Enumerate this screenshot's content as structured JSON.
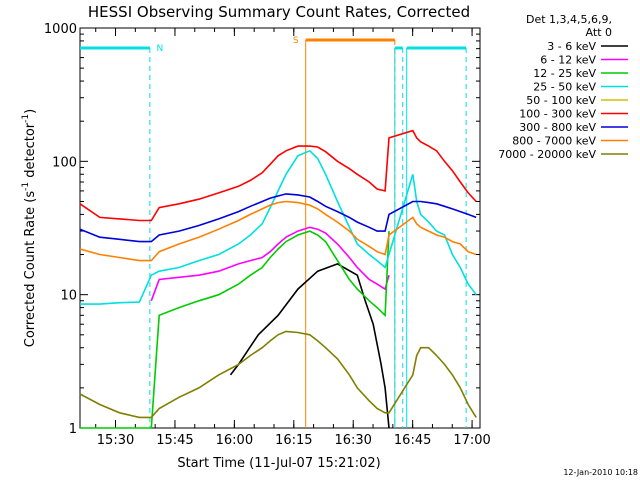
{
  "chart_data": {
    "type": "line",
    "title": "HESSI Observing Summary Count Rates, Corrected",
    "xlabel": "Start Time (11-Jul-07 15:21:02)",
    "ylabel_main": "Corrected Count Rate (s",
    "ylabel_sup1": "-1",
    "ylabel_mid": " detector",
    "ylabel_sup2": "-1",
    "ylabel_end": ")",
    "yscale": "log",
    "ylim": [
      1,
      1000
    ],
    "xlim": [
      "15:21:02",
      "17:02:00"
    ],
    "x_ticks": [
      "15:30",
      "15:45",
      "16:00",
      "16:15",
      "16:30",
      "16:45",
      "17:00"
    ],
    "y_ticks": [
      "1",
      "10",
      "100",
      "1000"
    ],
    "legend_header": [
      "Det 1,3,4,5,6,9,",
      "Att 0"
    ],
    "timestamp": "12-Jan-2010 10:18",
    "flags": [
      {
        "label": "N",
        "color": "#00e0e0"
      },
      {
        "label": "S",
        "color": "#ff8000"
      }
    ],
    "flag_intervals": [
      {
        "flag": "N",
        "start": "15:21:02",
        "end": "15:38:40",
        "color": "#00e0e0"
      },
      {
        "flag": "S",
        "start": "16:18:00",
        "end": "16:40:30",
        "color": "#ff8000"
      },
      {
        "flag": "N",
        "start": "16:40:30",
        "end": "16:42:30",
        "color": "#00e0e0"
      },
      {
        "flag": "N",
        "start": "16:43:30",
        "end": "16:58:30",
        "color": "#00e0e0"
      }
    ],
    "series": [
      {
        "name": "3 - 6 keV",
        "color": "#000000",
        "t": [
          38,
          40,
          45,
          50,
          55,
          60,
          65,
          70,
          72,
          74,
          76,
          77,
          78
        ],
        "v": [
          2.5,
          3,
          5,
          7,
          11,
          15,
          17,
          14,
          9,
          6,
          3,
          2,
          1
        ]
      },
      {
        "name": "6 - 12 keV",
        "color": "#ff00ff",
        "t": [
          0,
          5,
          10,
          15,
          18,
          20,
          25,
          30,
          35,
          40,
          43,
          46,
          48,
          50,
          52,
          55,
          58,
          60,
          62,
          65,
          68,
          70,
          73,
          75,
          77,
          78,
          79,
          80,
          81,
          82,
          83,
          84,
          85,
          86,
          87,
          88,
          89,
          90,
          91,
          92,
          93,
          94,
          95,
          96
        ],
        "v": [
          null,
          null,
          null,
          null,
          9,
          13,
          13.5,
          14,
          15,
          17,
          18,
          19,
          21,
          24,
          27,
          30,
          32,
          31,
          29,
          24,
          19,
          16,
          13,
          12,
          11,
          14,
          null,
          null,
          null,
          null,
          null,
          null,
          null,
          null,
          null,
          null,
          null,
          null,
          null,
          null,
          null,
          null,
          null,
          null
        ]
      },
      {
        "name": "12 - 25 keV",
        "color": "#00cc00",
        "t": [
          0,
          10,
          18,
          20,
          25,
          30,
          35,
          40,
          43,
          46,
          48,
          50,
          52,
          55,
          58,
          60,
          62,
          65,
          68,
          70,
          73,
          75,
          77,
          78
        ],
        "v": [
          1,
          1,
          1,
          7,
          8,
          9,
          10,
          12,
          14,
          16,
          19,
          22,
          25,
          28,
          30,
          28,
          25,
          18,
          13,
          11,
          9,
          8,
          7,
          30
        ]
      },
      {
        "name": "25 - 50 keV",
        "color": "#00e0e0",
        "t": [
          0,
          5,
          10,
          15,
          18,
          20,
          25,
          30,
          35,
          40,
          43,
          46,
          48,
          50,
          52,
          55,
          58,
          60,
          62,
          65,
          68,
          70,
          73,
          75,
          77,
          78,
          84,
          85,
          86,
          88,
          90,
          92,
          94,
          96,
          98,
          100
        ],
        "v": [
          8.5,
          8.5,
          8.7,
          8.8,
          14,
          15,
          16,
          18,
          20,
          24,
          28,
          34,
          45,
          60,
          80,
          110,
          120,
          105,
          80,
          50,
          32,
          24,
          20,
          18,
          16,
          20,
          80,
          50,
          40,
          35,
          30,
          28,
          20,
          16,
          12,
          10
        ]
      },
      {
        "name": "50 - 100 keV",
        "color": "#d4c000",
        "t": [
          0,
          5,
          10,
          15,
          18,
          20,
          25,
          30,
          35,
          40,
          43,
          46,
          48,
          50,
          52,
          55,
          58,
          60,
          62,
          65,
          68,
          70,
          73,
          75,
          77,
          78,
          84,
          85,
          86,
          88,
          90,
          92,
          94,
          96,
          98,
          100
        ],
        "v": [
          null,
          null,
          null,
          null,
          null,
          null,
          null,
          null,
          null,
          null,
          null,
          null,
          null,
          null,
          null,
          null,
          null,
          null,
          null,
          null,
          null,
          null,
          null,
          null,
          null,
          null,
          null,
          null,
          null,
          null,
          null,
          null,
          null,
          null,
          null,
          null
        ]
      },
      {
        "name": "100 - 300 keV",
        "color": "#ff0000",
        "t": [
          0,
          5,
          10,
          15,
          18,
          20,
          25,
          30,
          35,
          40,
          43,
          46,
          48,
          50,
          52,
          55,
          58,
          60,
          62,
          65,
          68,
          70,
          73,
          75,
          77,
          78,
          84,
          85,
          86,
          88,
          90,
          92,
          94,
          96,
          98,
          100
        ],
        "v": [
          48,
          38,
          37,
          36,
          36,
          45,
          48,
          52,
          58,
          65,
          72,
          82,
          95,
          110,
          120,
          130,
          130,
          128,
          118,
          100,
          88,
          80,
          70,
          62,
          60,
          150,
          170,
          150,
          140,
          130,
          120,
          100,
          85,
          70,
          58,
          50
        ]
      },
      {
        "name": "300 - 800 keV",
        "color": "#0000dd",
        "t": [
          0,
          5,
          10,
          15,
          18,
          20,
          25,
          30,
          35,
          40,
          43,
          46,
          48,
          50,
          52,
          55,
          58,
          60,
          62,
          65,
          68,
          70,
          73,
          75,
          77,
          78,
          84,
          85,
          86,
          88,
          90,
          92,
          94,
          96,
          98,
          100
        ],
        "v": [
          31,
          27,
          26,
          25,
          25,
          28,
          30,
          33,
          37,
          42,
          46,
          50,
          53,
          55,
          57,
          56,
          54,
          50,
          46,
          42,
          38,
          35,
          32,
          30,
          30,
          40,
          50,
          50,
          50,
          49,
          48,
          46,
          44,
          42,
          40,
          38
        ]
      },
      {
        "name": "800 - 7000 keV",
        "color": "#ff8000",
        "t": [
          0,
          5,
          10,
          15,
          18,
          20,
          25,
          30,
          35,
          40,
          43,
          46,
          48,
          50,
          52,
          55,
          58,
          60,
          62,
          65,
          68,
          70,
          73,
          75,
          77,
          78,
          84,
          85,
          86,
          88,
          90,
          92,
          94,
          96,
          98,
          100
        ],
        "v": [
          22,
          20,
          19,
          18,
          18,
          21,
          24,
          27,
          31,
          36,
          40,
          44,
          47,
          49,
          50,
          49,
          47,
          44,
          40,
          35,
          30,
          26,
          23,
          21,
          20,
          28,
          38,
          34,
          32,
          30,
          28,
          27,
          25,
          24,
          21,
          20
        ]
      },
      {
        "name": "7000 - 20000 keV",
        "color": "#808000",
        "t": [
          0,
          5,
          10,
          15,
          18,
          20,
          25,
          30,
          35,
          40,
          43,
          46,
          48,
          50,
          52,
          55,
          58,
          60,
          62,
          65,
          68,
          70,
          73,
          75,
          77,
          78,
          84,
          85,
          86,
          88,
          90,
          92,
          94,
          96,
          98,
          100
        ],
        "v": [
          1.8,
          1.5,
          1.3,
          1.2,
          1.2,
          1.4,
          1.7,
          2.0,
          2.5,
          3.0,
          3.5,
          4.0,
          4.5,
          5,
          5.3,
          5.2,
          5,
          4.5,
          4,
          3.3,
          2.5,
          2,
          1.6,
          1.4,
          1.3,
          1.3,
          2.5,
          3.5,
          4,
          4,
          3.5,
          3,
          2.5,
          2,
          1.5,
          1.2
        ]
      }
    ]
  }
}
